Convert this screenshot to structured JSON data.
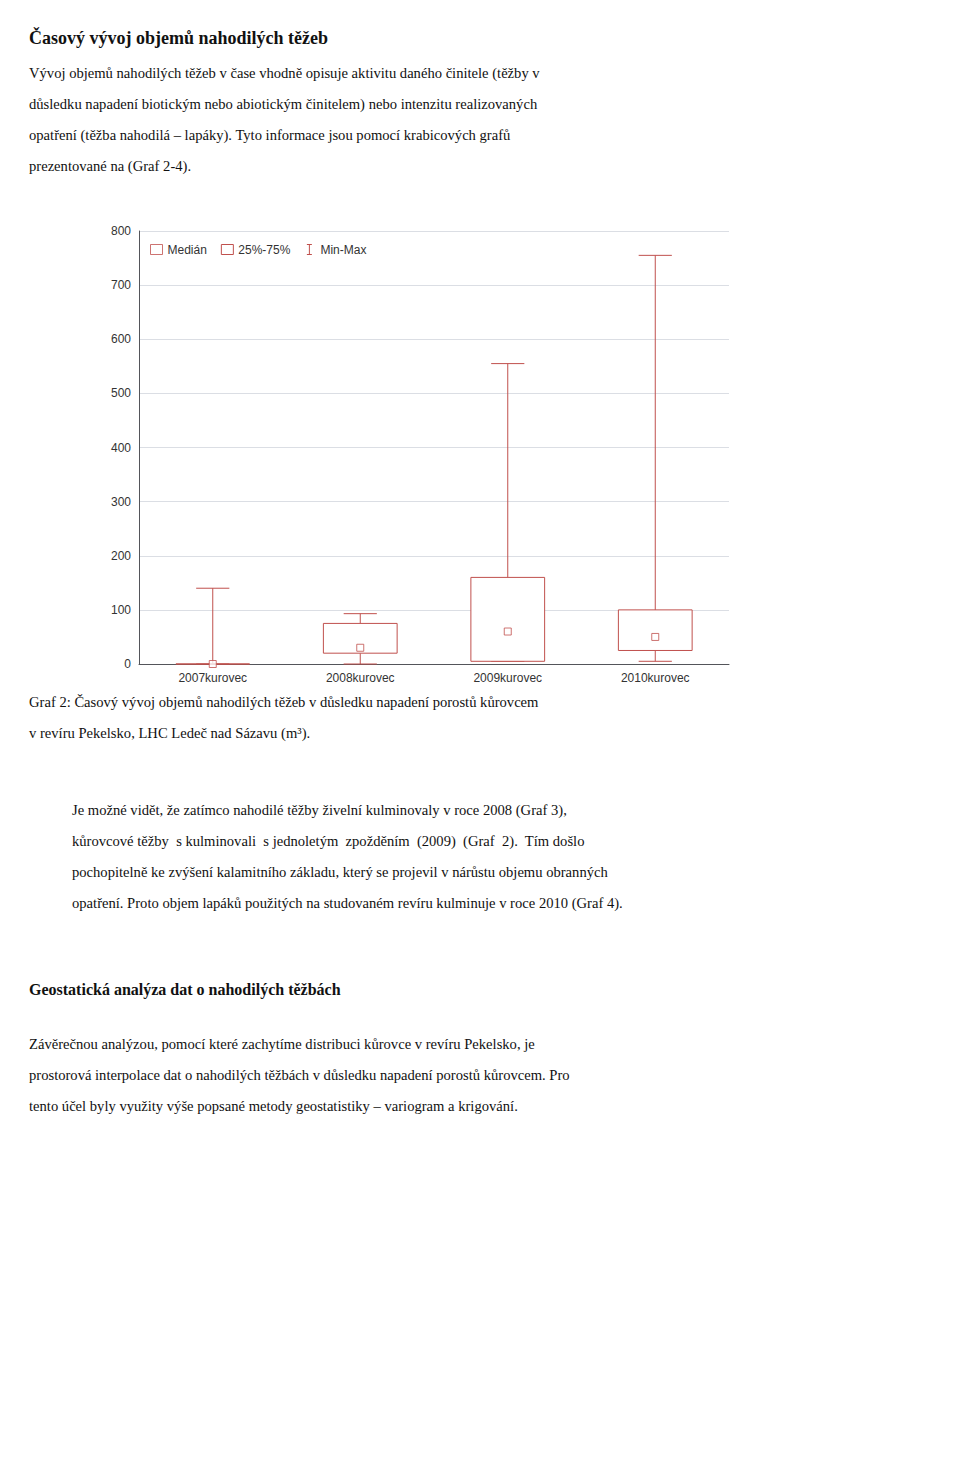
{
  "chart_data": {
    "type": "boxplot",
    "title": "Časový vývoj objemů nahodilých těžeb",
    "categories": [
      "2007kurovec",
      "2008kurovec",
      "2009kurovec",
      "2010kurovec"
    ],
    "series": [
      {
        "name": "Medián",
        "values": [
          0,
          30,
          60,
          50
        ]
      },
      {
        "name": "25%-75%",
        "values": [
          [
            0,
            0
          ],
          [
            20,
            75
          ],
          [
            5,
            160
          ],
          [
            25,
            100
          ]
        ]
      },
      {
        "name": "Min-Max",
        "values": [
          [
            0,
            140
          ],
          [
            0,
            93
          ],
          [
            5,
            555
          ],
          [
            5,
            755
          ]
        ]
      }
    ],
    "color": "#c0504d",
    "ylim": [
      0,
      800
    ],
    "yticks": [
      0,
      100,
      200,
      300,
      400,
      500,
      600,
      700,
      800
    ],
    "grid": true,
    "legend": "upper left",
    "annotations": [
      [
        "Vývoj objemů nahodilých těžeb v čase vhodně opisuje aktivitu daného činitele (těžby v",
        "důsledku napadení biotickým nebo abiotickým činitelem) nebo intenzitu realizovaných",
        "opatření (těžba nahodilá – lapáky). Tyto informace jsou pomocí krabicových grafů",
        "prezentované na (Graf 2-4)."
      ],
      [
        "Graf 2: Časový vývoj objemů nahodilých těžeb v důsledku napadení porostů kůrovcem",
        "v revíru Pekelsko, LHC Ledeč nad Sázavu (m³)."
      ],
      [
        "Je možné vidět, že zatímco nahodilé těžby živelní kulminovaly v roce 2008 (Graf 3),",
        "kůrovcové těžby  s kulminovali  s jednoletým  zpožděním  (2009)  (Graf  2).  Tím došlo",
        "pochopitelně ke zvýšení kalamitního základu, který se projevil v nárůstu objemu obranných",
        "opatření. Proto objem lapáků použitých na studovaném revíru kulminuje v roce 2010 (Graf 4)."
      ],
      [
        "Geostatická analýza dat o nahodilých těžbách"
      ],
      [
        "Závěrečnou analýzou, pomocí které zachytíme distribuci kůrovce v revíru Pekelsko, je",
        "prostorová interpolace dat o nahodilých těžbách v důsledku napadení porostů kůrovcem. Pro",
        "tento účel byly využity výše popsané metody geostatistiky – variogram a krigování."
      ]
    ]
  }
}
